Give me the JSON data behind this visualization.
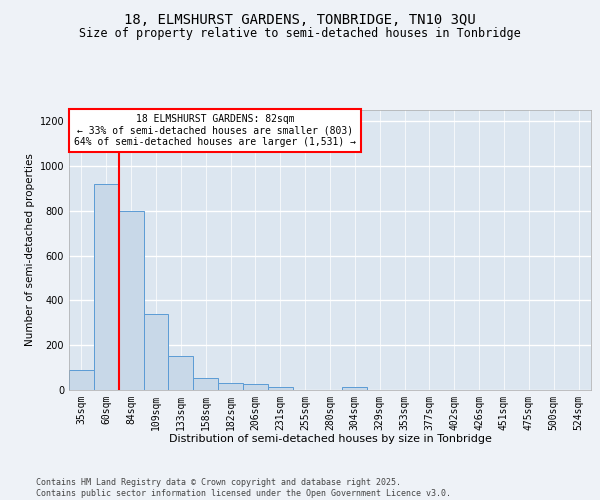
{
  "title1": "18, ELMSHURST GARDENS, TONBRIDGE, TN10 3QU",
  "title2": "Size of property relative to semi-detached houses in Tonbridge",
  "xlabel": "Distribution of semi-detached houses by size in Tonbridge",
  "ylabel": "Number of semi-detached properties",
  "categories": [
    "35sqm",
    "60sqm",
    "84sqm",
    "109sqm",
    "133sqm",
    "158sqm",
    "182sqm",
    "206sqm",
    "231sqm",
    "255sqm",
    "280sqm",
    "304sqm",
    "329sqm",
    "353sqm",
    "377sqm",
    "402sqm",
    "426sqm",
    "451sqm",
    "475sqm",
    "500sqm",
    "524sqm"
  ],
  "values": [
    90,
    920,
    800,
    340,
    150,
    55,
    30,
    28,
    12,
    0,
    0,
    15,
    0,
    0,
    0,
    0,
    0,
    0,
    0,
    0,
    0
  ],
  "bar_color": "#c8d8e8",
  "bar_edge_color": "#5b9bd5",
  "vline_color": "red",
  "annotation_box_text": "18 ELMSHURST GARDENS: 82sqm\n← 33% of semi-detached houses are smaller (803)\n64% of semi-detached houses are larger (1,531) →",
  "box_edge_color": "red",
  "ylim": [
    0,
    1250
  ],
  "yticks": [
    0,
    200,
    400,
    600,
    800,
    1000,
    1200
  ],
  "footer_text": "Contains HM Land Registry data © Crown copyright and database right 2025.\nContains public sector information licensed under the Open Government Licence v3.0.",
  "background_color": "#eef2f7",
  "plot_bg_color": "#dce6f0",
  "grid_color": "#ffffff",
  "title1_fontsize": 10,
  "title2_fontsize": 8.5,
  "xlabel_fontsize": 8,
  "ylabel_fontsize": 7.5,
  "tick_fontsize": 7,
  "footer_fontsize": 6
}
